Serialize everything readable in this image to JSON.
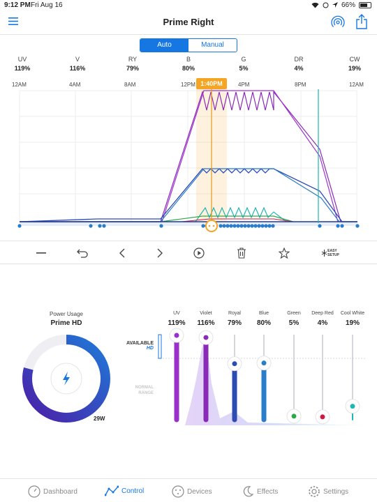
{
  "status_bar": {
    "time": "9:12 PM",
    "date": "Fri Aug 16",
    "battery": "66%"
  },
  "header": {
    "title": "Prime Right",
    "menu_icon": "menu-icon",
    "signal_icon": "wireless-icon",
    "share_icon": "share-icon"
  },
  "mode": {
    "auto_label": "Auto",
    "manual_label": "Manual",
    "selected": "Auto"
  },
  "channels": [
    {
      "name": "UV",
      "value": "119%"
    },
    {
      "name": "V",
      "value": "116%"
    },
    {
      "name": "RY",
      "value": "79%"
    },
    {
      "name": "B",
      "value": "80%"
    },
    {
      "name": "G",
      "value": "5%"
    },
    {
      "name": "DR",
      "value": "4%"
    },
    {
      "name": "CW",
      "value": "19%"
    }
  ],
  "time_ticks": [
    "12AM",
    "4AM",
    "8AM",
    "12PM",
    "1:40PM",
    "4PM",
    "8PM",
    "12AM"
  ],
  "current_time_label": "1:40PM",
  "toolbar": {
    "items": [
      "minus-icon",
      "undo-icon",
      "chevron-left-icon",
      "chevron-right-icon",
      "play-icon",
      "trash-icon",
      "star-icon",
      "easy-setup-icon"
    ],
    "easy_setup_line1": "EASY",
    "easy_setup_line2": "SETUP"
  },
  "power": {
    "label": "Power Usage",
    "device": "Prime HD",
    "watts": "29W",
    "ring_fill": 0.79
  },
  "legend": {
    "available": "AVAILABLE",
    "hd": "HD",
    "normal_line1": "NORMAL",
    "normal_line2": "RANGE"
  },
  "sliders": [
    {
      "name": "UV",
      "value": "119%",
      "color": "#9b2fc9",
      "level": 1.19
    },
    {
      "name": "Violet",
      "value": "116%",
      "color": "#8a2bb8",
      "level": 1.16
    },
    {
      "name": "Royal",
      "value": "79%",
      "color": "#2c4bb3",
      "level": 0.79
    },
    {
      "name": "Blue",
      "value": "80%",
      "color": "#2a7dc9",
      "level": 0.8
    },
    {
      "name": "Green",
      "value": "5%",
      "color": "#2fa84a",
      "level": 0.05
    },
    {
      "name": "Deep Red",
      "value": "4%",
      "color": "#d0173f",
      "level": 0.04
    },
    {
      "name": "Cool White",
      "value": "19%",
      "color": "#1fb5b5",
      "level": 0.19
    }
  ],
  "nav": [
    {
      "label": "Dashboard",
      "icon": "dashboard-icon",
      "active": false
    },
    {
      "label": "Control",
      "icon": "control-icon",
      "active": true
    },
    {
      "label": "Devices",
      "icon": "devices-icon",
      "active": false
    },
    {
      "label": "Effects",
      "icon": "effects-icon",
      "active": false
    },
    {
      "label": "Settings",
      "icon": "gear-icon",
      "active": false
    }
  ],
  "colors": {
    "accent": "#1677e3",
    "time_marker": "#f5a524",
    "ring_start": "#4b1fa8",
    "ring_end": "#1f79d8"
  }
}
